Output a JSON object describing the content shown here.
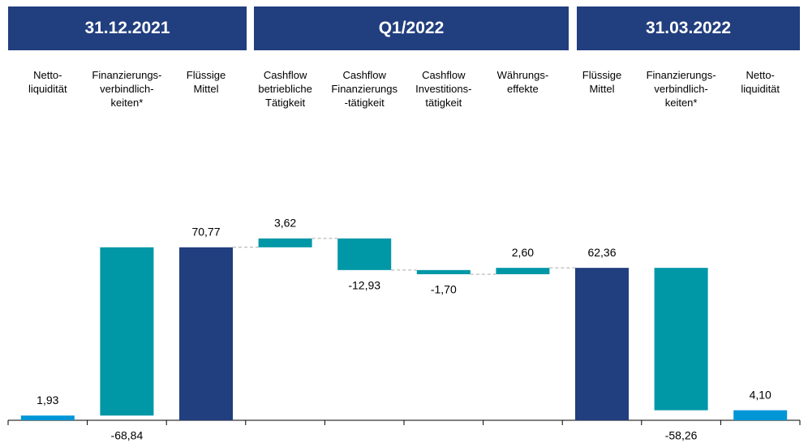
{
  "chart_data": {
    "type": "waterfall",
    "headers": [
      "31.12.2021",
      "Q1/2022",
      "31.03.2022"
    ],
    "categories": [
      "Netto-\nliquidität",
      "Finanzierungs-\nverbindlich-\nkeiten*",
      "Flüssige\nMittel",
      "Cashflow\nbetriebliche\nTätigkeit",
      "Cashflow\nFinanzierungs\n-tätigkeit",
      "Cashflow\nInvestitions-\ntätigkeit",
      "Währungs-\neffekte",
      "Flüssige\nMittel",
      "Finanzierungs-\nverbindlich-\nkeiten*",
      "Netto-\nliquidität"
    ],
    "values": [
      1.93,
      -68.84,
      70.77,
      3.62,
      -12.93,
      -1.7,
      2.6,
      62.36,
      -58.26,
      4.1
    ],
    "value_labels": [
      "1,93",
      "-68,84",
      "70,77",
      "3,62",
      "-12,93",
      "-1,70",
      "2,60",
      "62,36",
      "-58,26",
      "4,10"
    ],
    "kinds": [
      "total",
      "step_from_next",
      "total",
      "step",
      "step",
      "step",
      "step",
      "total",
      "step",
      "total"
    ],
    "colors": [
      "#0096d6",
      "#0097a7",
      "#213e7e",
      "#0097a7",
      "#0097a7",
      "#0097a7",
      "#0097a7",
      "#213e7e",
      "#0097a7",
      "#0096d6"
    ],
    "ylim": [
      0,
      80
    ]
  }
}
